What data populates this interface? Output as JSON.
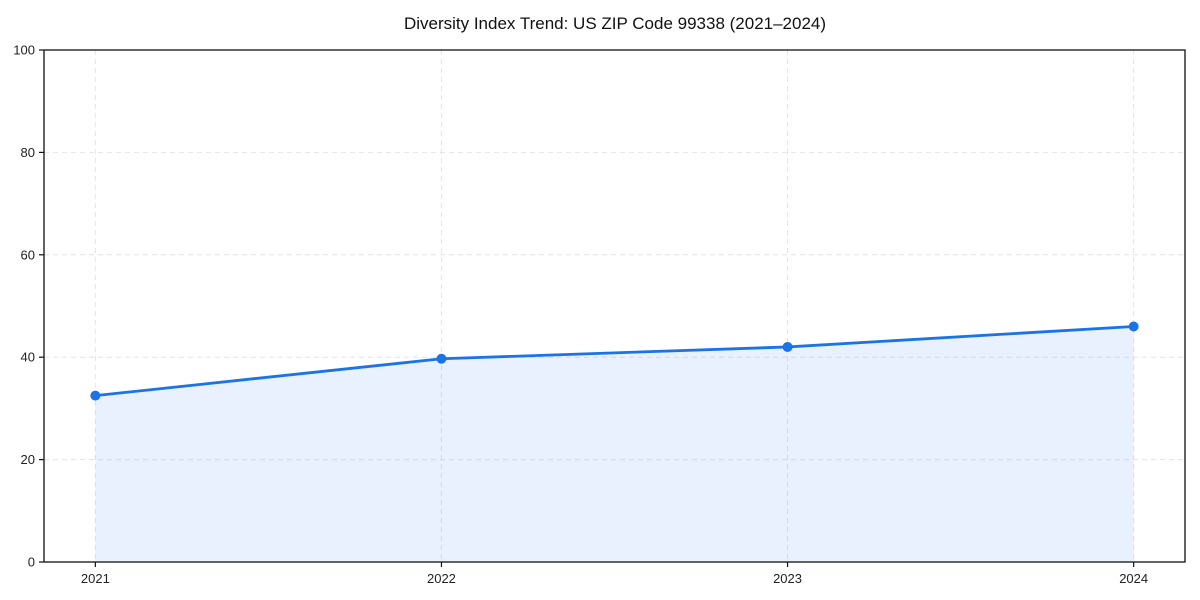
{
  "page": {
    "background_color": "#ffffff"
  },
  "chart_data": {
    "type": "line",
    "title": "Diversity Index Trend: US ZIP Code 99338 (2021–2024)",
    "categories": [
      "2021",
      "2022",
      "2023",
      "2024"
    ],
    "series": [
      {
        "name": "Diversity Index",
        "values": [
          32.5,
          39.7,
          42.0,
          46.0
        ]
      }
    ],
    "xlabel": "",
    "ylabel": "",
    "ylim": [
      0,
      100
    ],
    "yticks": [
      0,
      20,
      40,
      60,
      80,
      100
    ],
    "grid": true,
    "grid_style": "dashed",
    "legend": "none",
    "area_fill": true,
    "marker": "circle",
    "colors": {
      "line": "#1a73e8",
      "marker": "#1a73e8",
      "area_fill": "#1a73e8",
      "area_fill_opacity": 0.1,
      "grid": "#e4e4e4",
      "spine": "#111111",
      "tick": "#111111",
      "tick_label": "#222222",
      "title": "#111111"
    }
  }
}
